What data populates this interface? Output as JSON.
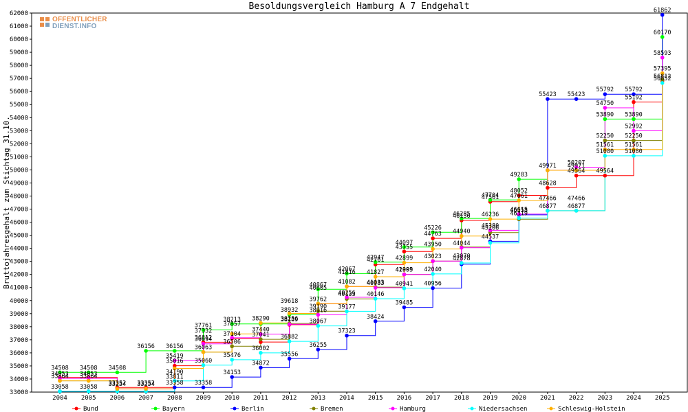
{
  "chart_data": {
    "type": "line",
    "title": "Besoldungsvergleich Hamburg A 7 Endgehalt",
    "ylabel": "Bruttojahresgehalt zum Stichtag 31.10.",
    "xlabel": "",
    "ylim": [
      33000,
      62000
    ],
    "ytick_step": 1000,
    "grid": false,
    "legend_position": "bottom",
    "x": [
      "2004",
      "2005",
      "2006",
      "2007",
      "2008",
      "2009",
      "2010",
      "2011",
      "2012",
      "2013",
      "2014",
      "2015",
      "2016",
      "2017",
      "2018",
      "2019",
      "2020",
      "2021",
      "2022",
      "2023",
      "2024",
      "2025"
    ],
    "series": [
      {
        "name": "Bund",
        "color": "#ff0000",
        "values": [
          34116,
          34116,
          33352,
          33352,
          35016,
          36812,
          37104,
          36829,
          38153,
          39762,
          41082,
          42761,
          43755,
          44763,
          46136,
          47561,
          48052,
          48628,
          49564,
          49564,
          55192,
          56812
        ]
      },
      {
        "name": "Bayern",
        "color": "#00ff00",
        "values": [
          34508,
          34508,
          34508,
          36156,
          36156,
          37761,
          38213,
          38213,
          38932,
          40867,
          42067,
          42947,
          44097,
          45226,
          46285,
          47704,
          49283,
          49971,
          49971,
          53890,
          53890,
          60170
        ]
      },
      {
        "name": "Berlin",
        "color": "#0000ff",
        "values": [
          33058,
          33058,
          33058,
          33058,
          33358,
          33358,
          34153,
          34872,
          35556,
          36255,
          37323,
          38424,
          39485,
          40956,
          42780,
          44537,
          46558,
          55423,
          55423,
          55792,
          55792,
          61862
        ]
      },
      {
        "name": "Bremen",
        "color": "#808000",
        "values": [
          33864,
          33864,
          33254,
          33254,
          34811,
          36063,
          36506,
          37041,
          38256,
          39190,
          40133,
          41033,
          42005,
          43023,
          44095,
          45206,
          46222,
          46877,
          46877,
          52250,
          52250,
          56900
        ]
      },
      {
        "name": "Hamburg",
        "color": "#ff00ff",
        "values": [
          34053,
          34053,
          33254,
          33254,
          35419,
          36694,
          37156,
          37440,
          38189,
          38916,
          40256,
          40983,
          41999,
          43023,
          44044,
          45380,
          46615,
          49977,
          50207,
          54750,
          52992,
          58593
        ]
      },
      {
        "name": "Niedersachsen",
        "color": "#00ffff",
        "values": [
          33058,
          33058,
          33058,
          33058,
          33858,
          35060,
          35476,
          36002,
          36882,
          38067,
          39177,
          40146,
          40941,
          42040,
          42878,
          44417,
          46319,
          46877,
          46877,
          51080,
          51080,
          56652
        ]
      },
      {
        "name": "Schleswig-Holstein",
        "color": "#ffb000",
        "values": [
          33864,
          33864,
          33254,
          33254,
          34811,
          36063,
          37457,
          38290,
          39018,
          39762,
          41082,
          41827,
          42899,
          43950,
          44940,
          46236,
          47661,
          49971,
          49971,
          51561,
          51561,
          57395
        ]
      }
    ],
    "labels": [
      {
        "text": "34508",
        "x": "2004",
        "y": 34508
      },
      {
        "text": "34053",
        "x": "2004",
        "y": 34053
      },
      {
        "text": "33864",
        "x": "2004",
        "y": 33864
      },
      {
        "text": "33058",
        "x": "2004",
        "y": 33058
      },
      {
        "text": "34508",
        "x": "2005",
        "y": 34508
      },
      {
        "text": "34053",
        "x": "2005",
        "y": 34053
      },
      {
        "text": "33864",
        "x": "2005",
        "y": 33864
      },
      {
        "text": "33058",
        "x": "2005",
        "y": 33058
      },
      {
        "text": "34508",
        "x": "2006",
        "y": 34508
      },
      {
        "text": "33352",
        "x": "2006",
        "y": 33352
      },
      {
        "text": "33254",
        "x": "2006",
        "y": 33254
      },
      {
        "text": "36156",
        "x": "2007",
        "y": 36156
      },
      {
        "text": "33352",
        "x": "2007",
        "y": 33352
      },
      {
        "text": "33254",
        "x": "2007",
        "y": 33254
      },
      {
        "text": "36156",
        "x": "2008",
        "y": 36156
      },
      {
        "text": "35419",
        "x": "2008",
        "y": 35419
      },
      {
        "text": "35016",
        "x": "2008",
        "y": 35016
      },
      {
        "text": "34190",
        "x": "2008",
        "y": 34190
      },
      {
        "text": "33811",
        "x": "2008",
        "y": 33811
      },
      {
        "text": "33358",
        "x": "2008",
        "y": 33358
      },
      {
        "text": "37761",
        "x": "2009",
        "y": 37761
      },
      {
        "text": "37332",
        "x": "2009",
        "y": 37332
      },
      {
        "text": "36812",
        "x": "2009",
        "y": 36812
      },
      {
        "text": "36694",
        "x": "2009",
        "y": 36694
      },
      {
        "text": "36063",
        "x": "2009",
        "y": 36063
      },
      {
        "text": "35060",
        "x": "2009",
        "y": 35060
      },
      {
        "text": "33358",
        "x": "2009",
        "y": 33358
      },
      {
        "text": "38213",
        "x": "2010",
        "y": 38213
      },
      {
        "text": "37857",
        "x": "2010",
        "y": 37857
      },
      {
        "text": "37104",
        "x": "2010",
        "y": 37104
      },
      {
        "text": "36506",
        "x": "2010",
        "y": 36506
      },
      {
        "text": "35476",
        "x": "2010",
        "y": 35476
      },
      {
        "text": "34153",
        "x": "2010",
        "y": 34153
      },
      {
        "text": "38290",
        "x": "2011",
        "y": 38290
      },
      {
        "text": "37440",
        "x": "2011",
        "y": 37440
      },
      {
        "text": "37041",
        "x": "2011",
        "y": 37041
      },
      {
        "text": "36002",
        "x": "2011",
        "y": 36002
      },
      {
        "text": "34872",
        "x": "2011",
        "y": 34872
      },
      {
        "text": "39618",
        "x": "2012",
        "y": 39618
      },
      {
        "text": "38932",
        "x": "2012",
        "y": 38932
      },
      {
        "text": "38256",
        "x": "2012",
        "y": 38256
      },
      {
        "text": "38189",
        "x": "2012",
        "y": 38189
      },
      {
        "text": "36882",
        "x": "2012",
        "y": 36882
      },
      {
        "text": "35556",
        "x": "2012",
        "y": 35556
      },
      {
        "text": "40867",
        "x": "2013",
        "y": 40867
      },
      {
        "text": "40605",
        "x": "2013",
        "y": 40605
      },
      {
        "text": "39762",
        "x": "2013",
        "y": 39762
      },
      {
        "text": "39190",
        "x": "2013",
        "y": 39190
      },
      {
        "text": "38916",
        "x": "2013",
        "y": 38916
      },
      {
        "text": "38067",
        "x": "2013",
        "y": 38067
      },
      {
        "text": "36255",
        "x": "2013",
        "y": 36255
      },
      {
        "text": "42067",
        "x": "2014",
        "y": 42067
      },
      {
        "text": "41816",
        "x": "2014",
        "y": 41816
      },
      {
        "text": "41082",
        "x": "2014",
        "y": 41082
      },
      {
        "text": "40256",
        "x": "2014",
        "y": 40256
      },
      {
        "text": "40133",
        "x": "2014",
        "y": 40133
      },
      {
        "text": "39177",
        "x": "2014",
        "y": 39177
      },
      {
        "text": "37323",
        "x": "2014",
        "y": 37323
      },
      {
        "text": "42947",
        "x": "2015",
        "y": 42947
      },
      {
        "text": "42761",
        "x": "2015",
        "y": 42761
      },
      {
        "text": "41827",
        "x": "2015",
        "y": 41827
      },
      {
        "text": "41033",
        "x": "2015",
        "y": 41033
      },
      {
        "text": "40983",
        "x": "2015",
        "y": 40983
      },
      {
        "text": "40146",
        "x": "2015",
        "y": 40146
      },
      {
        "text": "38424",
        "x": "2015",
        "y": 38424
      },
      {
        "text": "44097",
        "x": "2016",
        "y": 44097
      },
      {
        "text": "43755",
        "x": "2016",
        "y": 43755
      },
      {
        "text": "42899",
        "x": "2016",
        "y": 42899
      },
      {
        "text": "42005",
        "x": "2016",
        "y": 42005
      },
      {
        "text": "41999",
        "x": "2016",
        "y": 41999
      },
      {
        "text": "40941",
        "x": "2016",
        "y": 40941
      },
      {
        "text": "39485",
        "x": "2016",
        "y": 39485
      },
      {
        "text": "45226",
        "x": "2017",
        "y": 45226
      },
      {
        "text": "44763",
        "x": "2017",
        "y": 44763
      },
      {
        "text": "43950",
        "x": "2017",
        "y": 43950
      },
      {
        "text": "43023",
        "x": "2017",
        "y": 43023
      },
      {
        "text": "42040",
        "x": "2017",
        "y": 42040
      },
      {
        "text": "40956",
        "x": "2017",
        "y": 40956
      },
      {
        "text": "46285",
        "x": "2018",
        "y": 46285
      },
      {
        "text": "46136",
        "x": "2018",
        "y": 46136
      },
      {
        "text": "44940",
        "x": "2018",
        "y": 44940
      },
      {
        "text": "44044",
        "x": "2018",
        "y": 44044
      },
      {
        "text": "43070",
        "x": "2018",
        "y": 43070
      },
      {
        "text": "42878",
        "x": "2018",
        "y": 42878
      },
      {
        "text": "47704",
        "x": "2019",
        "y": 47704
      },
      {
        "text": "47561",
        "x": "2019",
        "y": 47561
      },
      {
        "text": "46236",
        "x": "2019",
        "y": 46236
      },
      {
        "text": "45380",
        "x": "2019",
        "y": 45380
      },
      {
        "text": "45206",
        "x": "2019",
        "y": 45206
      },
      {
        "text": "44537",
        "x": "2019",
        "y": 44537
      },
      {
        "text": "49283",
        "x": "2020",
        "y": 49283
      },
      {
        "text": "48052",
        "x": "2020",
        "y": 48052
      },
      {
        "text": "47661",
        "x": "2020",
        "y": 47661
      },
      {
        "text": "46615",
        "x": "2020",
        "y": 46615
      },
      {
        "text": "46558",
        "x": "2020",
        "y": 46558
      },
      {
        "text": "46319",
        "x": "2020",
        "y": 46319
      },
      {
        "text": "55423",
        "x": "2021",
        "y": 55423
      },
      {
        "text": "49971",
        "x": "2021",
        "y": 49971
      },
      {
        "text": "48628",
        "x": "2021",
        "y": 48628
      },
      {
        "text": "47466",
        "x": "2021",
        "y": 47466
      },
      {
        "text": "46877",
        "x": "2021",
        "y": 46877
      },
      {
        "text": "55423",
        "x": "2022",
        "y": 55423
      },
      {
        "text": "50207",
        "x": "2022",
        "y": 50207
      },
      {
        "text": "49971",
        "x": "2022",
        "y": 49971
      },
      {
        "text": "49564",
        "x": "2022",
        "y": 49564
      },
      {
        "text": "47466",
        "x": "2022",
        "y": 47466
      },
      {
        "text": "46877",
        "x": "2022",
        "y": 46877
      },
      {
        "text": "55792",
        "x": "2023",
        "y": 55792
      },
      {
        "text": "54750",
        "x": "2023",
        "y": 54750
      },
      {
        "text": "53890",
        "x": "2023",
        "y": 53890
      },
      {
        "text": "52250",
        "x": "2023",
        "y": 52250
      },
      {
        "text": "51561",
        "x": "2023",
        "y": 51561
      },
      {
        "text": "51080",
        "x": "2023",
        "y": 51080
      },
      {
        "text": "49564",
        "x": "2023",
        "y": 49564
      },
      {
        "text": "55792",
        "x": "2024",
        "y": 55792
      },
      {
        "text": "55192",
        "x": "2024",
        "y": 55192
      },
      {
        "text": "53890",
        "x": "2024",
        "y": 53890
      },
      {
        "text": "52992",
        "x": "2024",
        "y": 52992
      },
      {
        "text": "52250",
        "x": "2024",
        "y": 52250
      },
      {
        "text": "51561",
        "x": "2024",
        "y": 51561
      },
      {
        "text": "51080",
        "x": "2024",
        "y": 51080
      },
      {
        "text": "61862",
        "x": "2025",
        "y": 61862
      },
      {
        "text": "60170",
        "x": "2025",
        "y": 60170
      },
      {
        "text": "58593",
        "x": "2025",
        "y": 58593
      },
      {
        "text": "57395",
        "x": "2025",
        "y": 57395
      },
      {
        "text": "56812",
        "x": "2025",
        "y": 56812
      },
      {
        "text": "56652",
        "x": "2025",
        "y": 56652
      }
    ]
  },
  "logo": {
    "line1": "OFFENTLICHER",
    "line2": "DIENST.INFO"
  }
}
